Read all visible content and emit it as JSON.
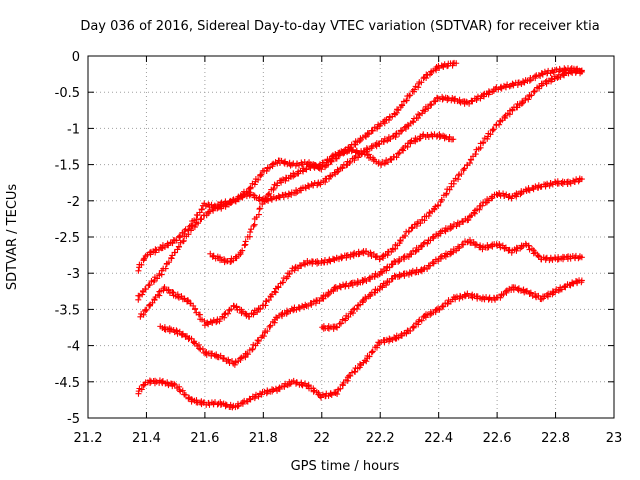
{
  "chart_data": {
    "type": "scatter",
    "title": "Day 036 of 2016, Sidereal Day-to-day VTEC variation (SDTVAR) for receiver ktia",
    "xlabel": "GPS time / hours",
    "ylabel": "SDTVAR / TECUs",
    "xlim": [
      21.2,
      23.0
    ],
    "ylim": [
      -5.0,
      0.0
    ],
    "x_ticks": [
      "21.2",
      "21.4",
      "21.6",
      "21.8",
      "22",
      "22.2",
      "22.4",
      "22.6",
      "22.8",
      "23"
    ],
    "y_ticks": [
      "0",
      "-0.5",
      "-1",
      "-1.5",
      "-2",
      "-2.5",
      "-3",
      "-3.5",
      "-4",
      "-4.5",
      "-5"
    ],
    "grid": true,
    "marker": "+",
    "color": "#ff0000",
    "series": [
      {
        "points": [
          [
            21.37,
            -2.95
          ],
          [
            21.4,
            -2.75
          ],
          [
            21.45,
            -2.65
          ],
          [
            21.5,
            -2.55
          ],
          [
            21.55,
            -2.35
          ],
          [
            21.6,
            -2.05
          ],
          [
            21.65,
            -2.1
          ],
          [
            21.7,
            -2.0
          ],
          [
            21.75,
            -1.85
          ],
          [
            21.8,
            -1.6
          ],
          [
            21.85,
            -1.45
          ],
          [
            21.9,
            -1.5
          ],
          [
            21.95,
            -1.48
          ],
          [
            22.0,
            -1.55
          ],
          [
            22.05,
            -1.4
          ],
          [
            22.1,
            -1.25
          ],
          [
            22.15,
            -1.1
          ],
          [
            22.2,
            -0.95
          ],
          [
            22.25,
            -0.8
          ],
          [
            22.3,
            -0.55
          ],
          [
            22.35,
            -0.3
          ],
          [
            22.4,
            -0.15
          ],
          [
            22.44,
            -0.12
          ],
          [
            22.46,
            -0.1
          ]
        ]
      },
      {
        "points": [
          [
            21.37,
            -3.35
          ],
          [
            21.4,
            -3.2
          ],
          [
            21.45,
            -3.0
          ],
          [
            21.5,
            -2.7
          ],
          [
            21.55,
            -2.4
          ],
          [
            21.6,
            -2.2
          ],
          [
            21.65,
            -2.05
          ],
          [
            21.7,
            -2.0
          ],
          [
            21.75,
            -1.9
          ],
          [
            21.8,
            -2.0
          ],
          [
            21.85,
            -1.95
          ],
          [
            21.9,
            -1.9
          ],
          [
            21.95,
            -1.8
          ],
          [
            22.0,
            -1.75
          ],
          [
            22.05,
            -1.6
          ],
          [
            22.1,
            -1.45
          ],
          [
            22.15,
            -1.3
          ],
          [
            22.2,
            -1.2
          ],
          [
            22.25,
            -1.1
          ],
          [
            22.3,
            -0.95
          ],
          [
            22.35,
            -0.75
          ],
          [
            22.4,
            -0.58
          ],
          [
            22.45,
            -0.6
          ],
          [
            22.5,
            -0.65
          ],
          [
            22.55,
            -0.55
          ],
          [
            22.6,
            -0.45
          ],
          [
            22.65,
            -0.4
          ],
          [
            22.7,
            -0.35
          ],
          [
            22.75,
            -0.25
          ],
          [
            22.8,
            -0.2
          ],
          [
            22.85,
            -0.18
          ],
          [
            22.89,
            -0.2
          ]
        ]
      },
      {
        "points": [
          [
            21.38,
            -3.6
          ],
          [
            21.42,
            -3.4
          ],
          [
            21.46,
            -3.2
          ],
          [
            21.5,
            -3.3
          ],
          [
            21.55,
            -3.4
          ],
          [
            21.6,
            -3.7
          ],
          [
            21.65,
            -3.65
          ],
          [
            21.7,
            -3.45
          ],
          [
            21.75,
            -3.6
          ],
          [
            21.8,
            -3.45
          ],
          [
            21.85,
            -3.2
          ],
          [
            21.9,
            -2.95
          ],
          [
            21.95,
            -2.85
          ],
          [
            22.0,
            -2.85
          ],
          [
            22.05,
            -2.8
          ],
          [
            22.1,
            -2.75
          ],
          [
            22.15,
            -2.7
          ],
          [
            22.2,
            -2.8
          ],
          [
            22.25,
            -2.65
          ],
          [
            22.3,
            -2.4
          ],
          [
            22.35,
            -2.25
          ],
          [
            22.4,
            -2.05
          ],
          [
            22.45,
            -1.75
          ],
          [
            22.5,
            -1.5
          ],
          [
            22.55,
            -1.2
          ],
          [
            22.6,
            -0.95
          ],
          [
            22.65,
            -0.75
          ],
          [
            22.7,
            -0.6
          ],
          [
            22.75,
            -0.4
          ],
          [
            22.8,
            -0.3
          ],
          [
            22.85,
            -0.22
          ],
          [
            22.89,
            -0.22
          ]
        ]
      },
      {
        "points": [
          [
            21.45,
            -3.75
          ],
          [
            21.5,
            -3.8
          ],
          [
            21.55,
            -3.9
          ],
          [
            21.6,
            -4.1
          ],
          [
            21.65,
            -4.15
          ],
          [
            21.7,
            -4.25
          ],
          [
            21.75,
            -4.1
          ],
          [
            21.8,
            -3.85
          ],
          [
            21.85,
            -3.6
          ],
          [
            21.9,
            -3.5
          ],
          [
            21.95,
            -3.45
          ],
          [
            22.0,
            -3.35
          ],
          [
            22.05,
            -3.2
          ],
          [
            22.1,
            -3.15
          ],
          [
            22.15,
            -3.1
          ],
          [
            22.2,
            -3.0
          ],
          [
            22.25,
            -2.85
          ],
          [
            22.3,
            -2.75
          ],
          [
            22.35,
            -2.6
          ],
          [
            22.4,
            -2.45
          ],
          [
            22.45,
            -2.35
          ],
          [
            22.5,
            -2.25
          ],
          [
            22.55,
            -2.05
          ],
          [
            22.6,
            -1.9
          ],
          [
            22.65,
            -1.95
          ],
          [
            22.7,
            -1.85
          ],
          [
            22.75,
            -1.8
          ],
          [
            22.8,
            -1.75
          ],
          [
            22.85,
            -1.75
          ],
          [
            22.89,
            -1.7
          ]
        ]
      },
      {
        "points": [
          [
            21.62,
            -2.75
          ],
          [
            21.65,
            -2.8
          ],
          [
            21.68,
            -2.85
          ],
          [
            21.72,
            -2.75
          ],
          [
            21.76,
            -2.4
          ],
          [
            21.8,
            -2.0
          ],
          [
            21.85,
            -1.75
          ],
          [
            21.9,
            -1.65
          ],
          [
            21.95,
            -1.55
          ],
          [
            22.0,
            -1.5
          ],
          [
            22.05,
            -1.35
          ],
          [
            22.1,
            -1.3
          ],
          [
            22.15,
            -1.35
          ],
          [
            22.2,
            -1.5
          ],
          [
            22.25,
            -1.4
          ],
          [
            22.3,
            -1.2
          ],
          [
            22.35,
            -1.1
          ],
          [
            22.4,
            -1.1
          ],
          [
            22.45,
            -1.15
          ]
        ]
      },
      {
        "points": [
          [
            22.0,
            -3.75
          ],
          [
            22.05,
            -3.75
          ],
          [
            22.1,
            -3.55
          ],
          [
            22.15,
            -3.35
          ],
          [
            22.2,
            -3.2
          ],
          [
            22.25,
            -3.05
          ],
          [
            22.3,
            -3.0
          ],
          [
            22.35,
            -2.95
          ],
          [
            22.4,
            -2.8
          ],
          [
            22.45,
            -2.7
          ],
          [
            22.5,
            -2.55
          ],
          [
            22.55,
            -2.65
          ],
          [
            22.6,
            -2.6
          ],
          [
            22.65,
            -2.7
          ],
          [
            22.7,
            -2.6
          ],
          [
            22.75,
            -2.8
          ],
          [
            22.8,
            -2.8
          ],
          [
            22.85,
            -2.78
          ],
          [
            22.89,
            -2.78
          ]
        ]
      },
      {
        "points": [
          [
            21.37,
            -4.65
          ],
          [
            21.4,
            -4.5
          ],
          [
            21.45,
            -4.5
          ],
          [
            21.5,
            -4.55
          ],
          [
            21.55,
            -4.75
          ],
          [
            21.6,
            -4.8
          ],
          [
            21.65,
            -4.8
          ],
          [
            21.7,
            -4.85
          ],
          [
            21.75,
            -4.75
          ],
          [
            21.8,
            -4.65
          ],
          [
            21.85,
            -4.6
          ],
          [
            21.9,
            -4.5
          ],
          [
            21.95,
            -4.55
          ],
          [
            22.0,
            -4.7
          ],
          [
            22.05,
            -4.65
          ],
          [
            22.1,
            -4.4
          ],
          [
            22.15,
            -4.2
          ],
          [
            22.2,
            -3.95
          ],
          [
            22.25,
            -3.9
          ],
          [
            22.3,
            -3.8
          ],
          [
            22.35,
            -3.6
          ],
          [
            22.4,
            -3.5
          ],
          [
            22.45,
            -3.35
          ],
          [
            22.5,
            -3.3
          ],
          [
            22.55,
            -3.35
          ],
          [
            22.6,
            -3.35
          ],
          [
            22.65,
            -3.2
          ],
          [
            22.7,
            -3.25
          ],
          [
            22.75,
            -3.35
          ],
          [
            22.8,
            -3.25
          ],
          [
            22.85,
            -3.15
          ],
          [
            22.89,
            -3.1
          ]
        ]
      }
    ]
  }
}
